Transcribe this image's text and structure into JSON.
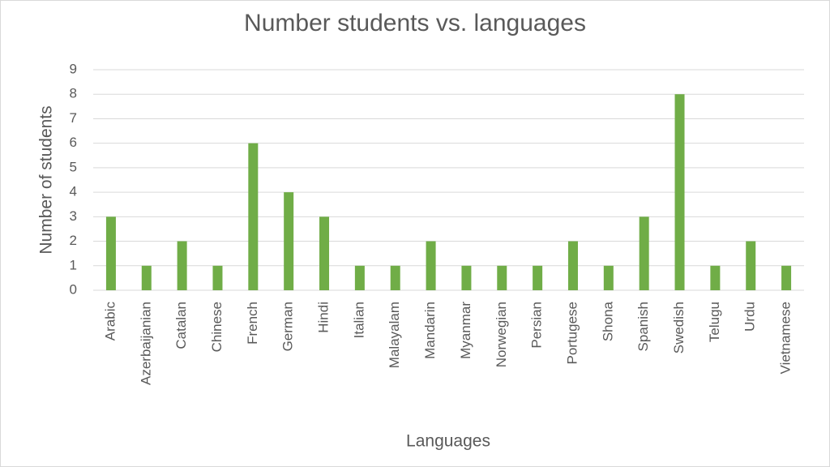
{
  "chart_data": {
    "type": "bar",
    "title": "Number students vs. languages",
    "x_label": "Languages",
    "y_label": "Number of students",
    "categories": [
      "Arabic",
      "Azerbaijanian",
      "Catalan",
      "Chinese",
      "French",
      "German",
      "Hindi",
      "Italian",
      "Malayalam",
      "Mandarin",
      "Myanmar",
      "Norwegian",
      "Persian",
      "Portugese",
      "Shona",
      "Spanish",
      "Swedish",
      "Telugu",
      "Urdu",
      "Vietnamese"
    ],
    "values": [
      3,
      1,
      2,
      1,
      6,
      4,
      3,
      1,
      1,
      2,
      1,
      1,
      1,
      2,
      1,
      3,
      8,
      1,
      2,
      1
    ],
    "color": "#70ad47",
    "ylim": [
      0,
      9
    ],
    "yticks": [
      0,
      1,
      2,
      3,
      4,
      5,
      6,
      7,
      8,
      9
    ],
    "grid": true
  }
}
